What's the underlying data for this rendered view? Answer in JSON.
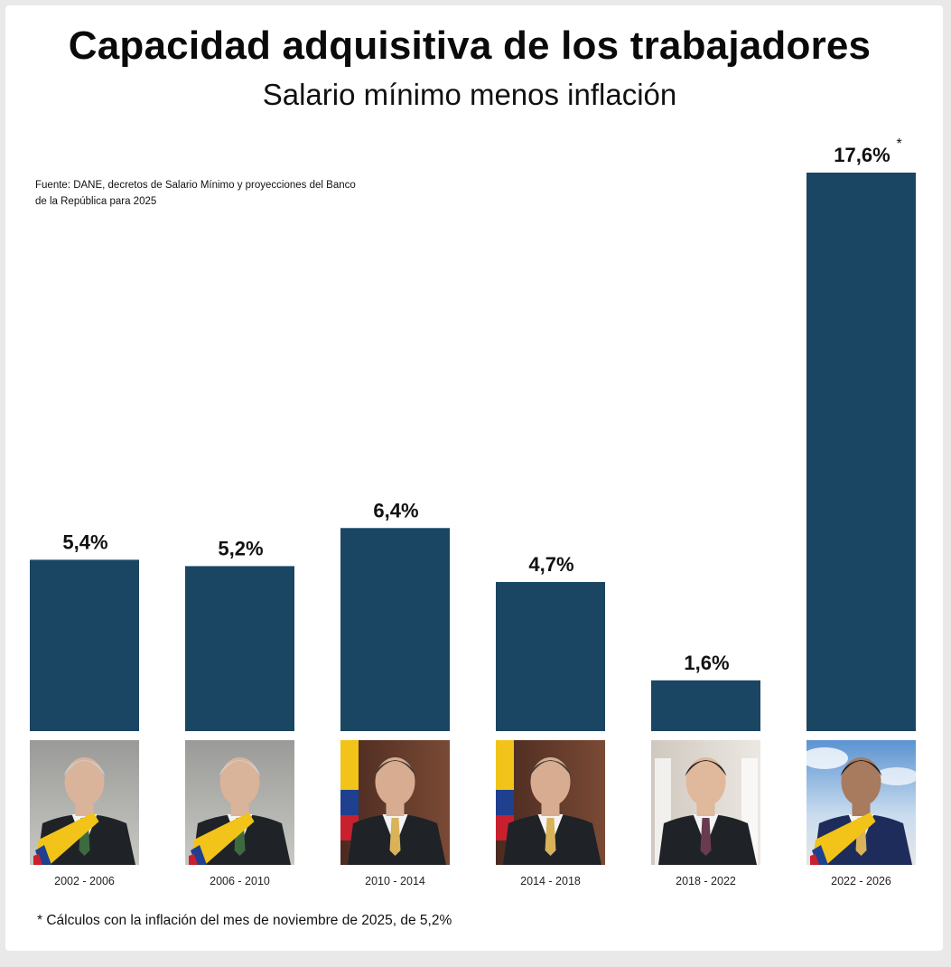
{
  "header": {
    "title": "Capacidad adquisitiva de los trabajadores",
    "subtitle": "Salario mínimo menos inflación",
    "source": "Fuente: DANE, decretos de Salario Mínimo y proyecciones del Banco de la República para 2025"
  },
  "footnote": "* Cálculos con la inflación del mes de noviembre de 2025, de 5,2%",
  "chart_data": {
    "type": "bar",
    "title": "Capacidad adquisitiva de los trabajadores",
    "subtitle": "Salario mínimo menos inflación",
    "categories": [
      "2002 - 2006",
      "2006 - 2010",
      "2010 - 2014",
      "2014 - 2018",
      "2018 - 2022",
      "2022 - 2026"
    ],
    "values": [
      5.4,
      5.2,
      6.4,
      4.7,
      1.6,
      17.6
    ],
    "value_labels": [
      "5,4%",
      "5,2%",
      "6,4%",
      "4,7%",
      "1,6%",
      "17,6%"
    ],
    "value_markers": [
      "",
      "",
      "",
      "",
      "",
      "*"
    ],
    "bar_color": "#1a4663",
    "xlabel": "",
    "ylabel": "",
    "grid": false,
    "legend": "none"
  }
}
